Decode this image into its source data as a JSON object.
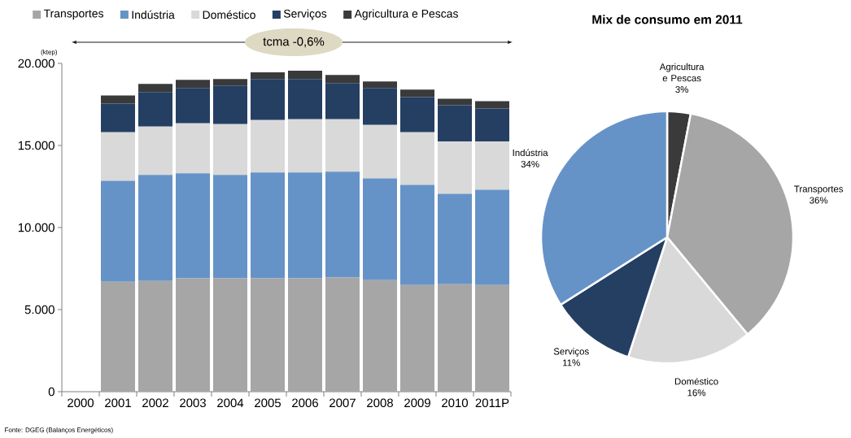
{
  "chart_data": [
    {
      "type": "bar",
      "stacked": true,
      "ylabel": "(ktep)",
      "legend": "top",
      "categories": [
        "2000",
        "2001",
        "2002",
        "2003",
        "2004",
        "2005",
        "2006",
        "2007",
        "2008",
        "2009",
        "2010",
        "2011P"
      ],
      "series": [
        {
          "name": "Transportes",
          "color": "#a6a6a6",
          "values": [
            null,
            6700,
            6750,
            6900,
            6900,
            6900,
            6900,
            6950,
            6800,
            6500,
            6550,
            6500
          ]
        },
        {
          "name": "Indústria",
          "color": "#6693c7",
          "values": [
            null,
            6150,
            6450,
            6400,
            6300,
            6450,
            6450,
            6450,
            6200,
            6100,
            5500,
            5800
          ]
        },
        {
          "name": "Doméstico",
          "color": "#d9d9d9",
          "values": [
            null,
            2950,
            2950,
            3050,
            3100,
            3200,
            3250,
            3200,
            3250,
            3200,
            3200,
            2950
          ]
        },
        {
          "name": "Serviços",
          "color": "#253f63",
          "values": [
            null,
            1750,
            2100,
            2150,
            2350,
            2500,
            2450,
            2200,
            2250,
            2150,
            2200,
            2000
          ]
        },
        {
          "name": "Agricultura e Pescas",
          "color": "#3a3a3a",
          "values": [
            null,
            500,
            500,
            500,
            400,
            400,
            500,
            500,
            400,
            450,
            400,
            450
          ]
        }
      ],
      "ylim": [
        0,
        20000
      ],
      "yticks": [
        0,
        {
          "value": 5000,
          "label": "5.000"
        },
        {
          "value": 10000,
          "label": "10.000"
        },
        {
          "value": 15000,
          "label": "15.000"
        },
        {
          "value": 20000,
          "label": "20.000"
        }
      ],
      "annotations": [
        "tcma -0,6%",
        "Fonte: DGEG (Balanços Energéticos)"
      ]
    },
    {
      "type": "pie",
      "title": "Mix de consumo em 2011",
      "categories": [
        "Agricultura e Pescas",
        "Transportes",
        "Doméstico",
        "Serviços",
        "Indústria"
      ],
      "values": [
        3,
        36,
        16,
        11,
        34
      ],
      "colors": [
        "#3a3a3a",
        "#a6a6a6",
        "#d9d9d9",
        "#253f63",
        "#6693c7"
      ],
      "value_labels": [
        "3%",
        "36%",
        "16%",
        "11%",
        "34%"
      ]
    }
  ]
}
